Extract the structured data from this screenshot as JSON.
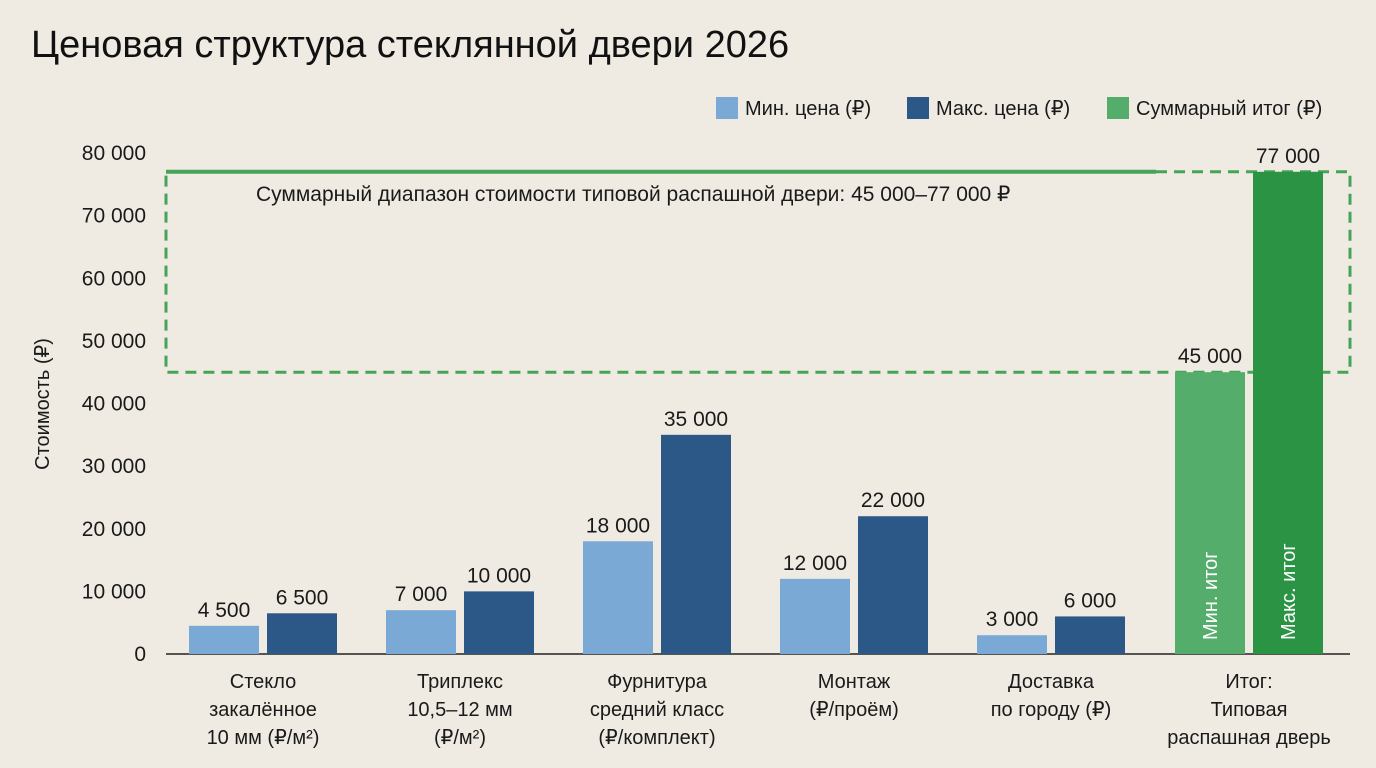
{
  "title": "Ценовая структура стеклянной двери 2026",
  "colors": {
    "min": "#7ba9d6",
    "max": "#2b5887",
    "total_min": "#55ad6b",
    "total_max": "#2a9444",
    "range": "#46a357",
    "background": "#efebe3"
  },
  "chart_data": {
    "type": "bar",
    "ylabel": "Стоимость (₽)",
    "ylim": [
      0,
      80000
    ],
    "yticks": [
      0,
      10000,
      20000,
      30000,
      40000,
      50000,
      60000,
      70000,
      80000
    ],
    "ytick_labels": [
      "0",
      "10 000",
      "20 000",
      "30 000",
      "40 000",
      "50 000",
      "60 000",
      "70 000",
      "80 000"
    ],
    "legend": {
      "placement": "top-right",
      "entries": [
        "Мин. цена (₽)",
        "Макс. цена (₽)",
        "Суммарный итог (₽)"
      ]
    },
    "categories": [
      [
        "Стекло",
        "закалённое",
        "10 мм (₽/м²)"
      ],
      [
        "Триплекс",
        "10,5–12 мм",
        "(₽/м²)"
      ],
      [
        "Фурнитура",
        "средний класс",
        "(₽/комплект)"
      ],
      [
        "Монтаж",
        "(₽/проём)"
      ],
      [
        "Доставка",
        "по городу (₽)"
      ],
      [
        "Итог:",
        "Типовая",
        "распашная дверь"
      ]
    ],
    "series": [
      {
        "name": "Мин. цена (₽)",
        "values": [
          4500,
          7000,
          18000,
          12000,
          3000,
          45000
        ],
        "labels": [
          "4 500",
          "7 000",
          "18 000",
          "12 000",
          "3 000",
          "45 000"
        ]
      },
      {
        "name": "Макс. цена (₽)",
        "values": [
          6500,
          10000,
          35000,
          22000,
          6000,
          77000
        ],
        "labels": [
          "6 500",
          "10 000",
          "35 000",
          "22 000",
          "6 000",
          "77 000"
        ]
      }
    ],
    "total_inbar_labels": [
      "Мин. итог",
      "Макс. итог"
    ],
    "annotation": {
      "text": "Суммарный диапазон стоимости типовой распашной двери: 45 000–77 000 ₽",
      "range": [
        45000,
        77000
      ]
    },
    "grid": false
  }
}
